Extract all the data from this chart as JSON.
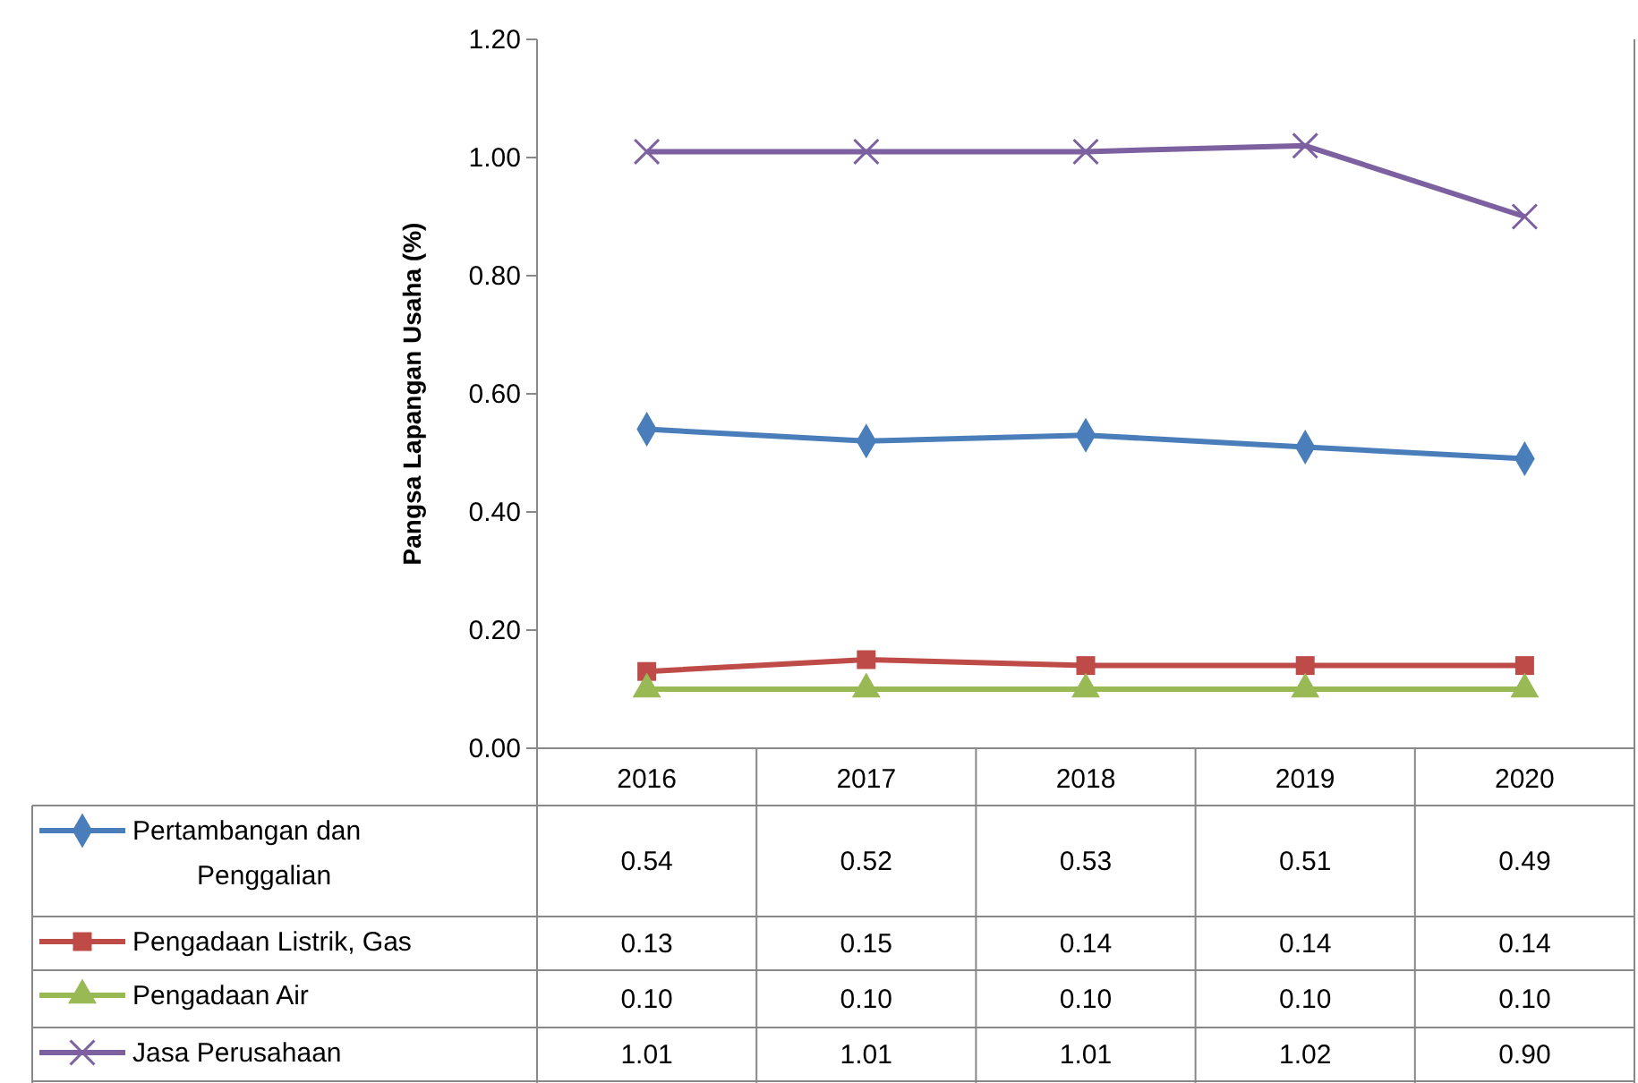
{
  "chart_data": {
    "type": "line",
    "ylabel": "Pangsa Lapangan Usaha (%)",
    "categories": [
      "2016",
      "2017",
      "2018",
      "2019",
      "2020"
    ],
    "series": [
      {
        "name": "Pertambangan dan Penggalian",
        "color": "#4a7ebb",
        "marker": "diamond",
        "values": [
          0.54,
          0.52,
          0.53,
          0.51,
          0.49
        ],
        "value_labels": [
          "0.54",
          "0.52",
          "0.53",
          "0.51",
          "0.49"
        ]
      },
      {
        "name": "Pengadaan Listrik, Gas",
        "color": "#be4b48",
        "marker": "square",
        "values": [
          0.13,
          0.15,
          0.14,
          0.14,
          0.14
        ],
        "value_labels": [
          "0.13",
          "0.15",
          "0.14",
          "0.14",
          "0.14"
        ]
      },
      {
        "name": "Pengadaan Air",
        "color": "#98b954",
        "marker": "triangle",
        "values": [
          0.1,
          0.1,
          0.1,
          0.1,
          0.1
        ],
        "value_labels": [
          "0.10",
          "0.10",
          "0.10",
          "0.10",
          "0.10"
        ]
      },
      {
        "name": "Jasa Perusahaan",
        "color": "#7d60a0",
        "marker": "cross",
        "values": [
          1.01,
          1.01,
          1.01,
          1.02,
          0.9
        ],
        "value_labels": [
          "1.01",
          "1.01",
          "1.01",
          "1.02",
          "0.90"
        ]
      }
    ],
    "ylim": [
      0,
      1.2
    ],
    "yticks": [
      {
        "value": 0,
        "label": "0.00"
      },
      {
        "value": 0.2,
        "label": "0.20"
      },
      {
        "value": 0.4,
        "label": "0.40"
      },
      {
        "value": 0.6,
        "label": "0.60"
      },
      {
        "value": 0.8,
        "label": "0.80"
      },
      {
        "value": 1.0,
        "label": "1.00"
      },
      {
        "value": 1.2,
        "label": "1.20"
      }
    ],
    "grid": false,
    "legend": "bottom",
    "line_style": "solid"
  }
}
